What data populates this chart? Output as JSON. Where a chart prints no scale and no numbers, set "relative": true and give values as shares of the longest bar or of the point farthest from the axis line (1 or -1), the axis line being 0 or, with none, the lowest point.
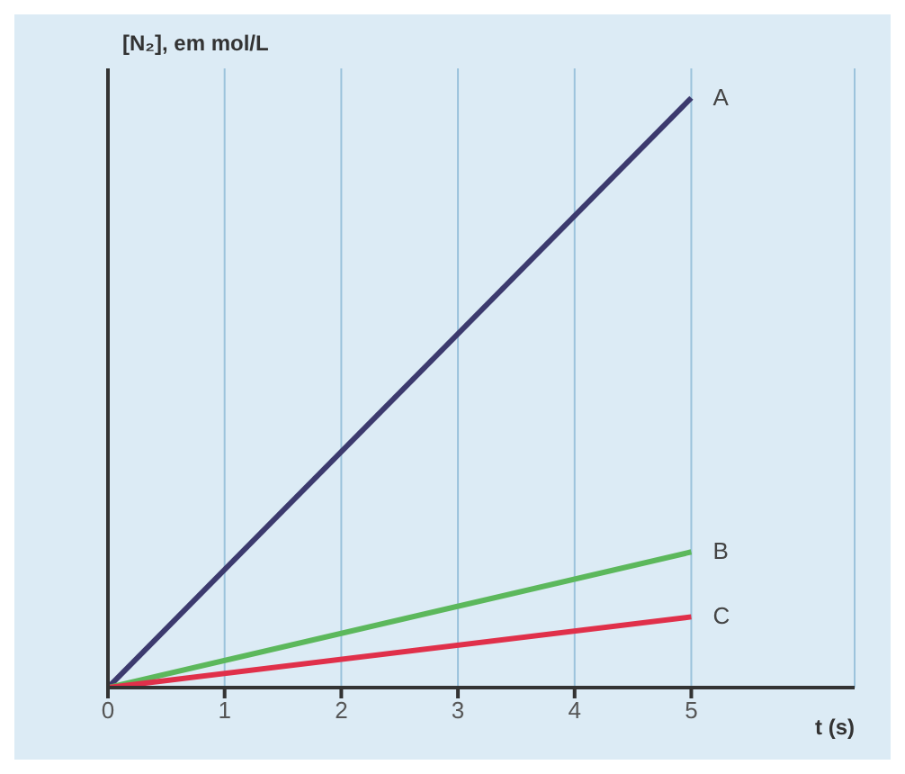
{
  "chart_data": {
    "type": "line",
    "relative": true,
    "ylabel": "[N₂], em mol/L",
    "xlabel": "t (s)",
    "xlim": [
      0,
      6.4
    ],
    "xticks": [
      0,
      1,
      2,
      3,
      4,
      5
    ],
    "grid": "x",
    "legend": false,
    "marker": "none",
    "line_style": "solid",
    "x": [
      0,
      5
    ],
    "series": [
      {
        "name": "A",
        "color": "#3c3a6e",
        "values": [
          0,
          1
        ]
      },
      {
        "name": "B",
        "color": "#5cb85c",
        "values": [
          0,
          0.23
        ]
      },
      {
        "name": "C",
        "color": "#e0304a",
        "values": [
          0,
          0.12
        ]
      }
    ]
  }
}
